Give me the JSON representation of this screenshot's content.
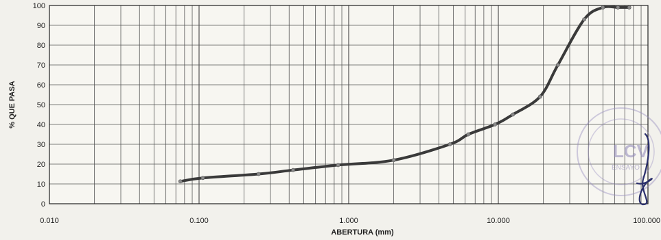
{
  "chart_data": {
    "type": "line",
    "xlabel": "ABERTURA (mm)",
    "ylabel": "% QUE PASA",
    "x_scale": "log",
    "xlim": [
      0.01,
      100
    ],
    "ylim": [
      0,
      100
    ],
    "x_ticks": [
      0.01,
      0.1,
      1,
      10,
      100
    ],
    "x_tick_labels": [
      "0.010",
      "0.100",
      "1.000",
      "10.000",
      "100.000"
    ],
    "y_ticks": [
      0,
      10,
      20,
      30,
      40,
      50,
      60,
      70,
      80,
      90,
      100
    ],
    "y_tick_labels": [
      "0",
      "10",
      "20",
      "30",
      "40",
      "50",
      "60",
      "70",
      "80",
      "90",
      "100"
    ],
    "grid": true,
    "series": [
      {
        "x": [
          0.075,
          0.106,
          0.25,
          0.425,
          0.85,
          2.0,
          4.75,
          6.3,
          9.5,
          12.5,
          19.0,
          25.0,
          37.5,
          50.0,
          63.0,
          75.0
        ],
        "y": [
          11.3,
          13.0,
          15.0,
          17.0,
          19.5,
          22.0,
          30.0,
          35.0,
          40.0,
          45.0,
          54.0,
          70.0,
          93.0,
          99.0,
          99.0,
          99.0
        ]
      }
    ],
    "color": "#3a3a3a"
  },
  "stamp": {
    "text": "LCV",
    "text_small": "ENSAYO"
  }
}
